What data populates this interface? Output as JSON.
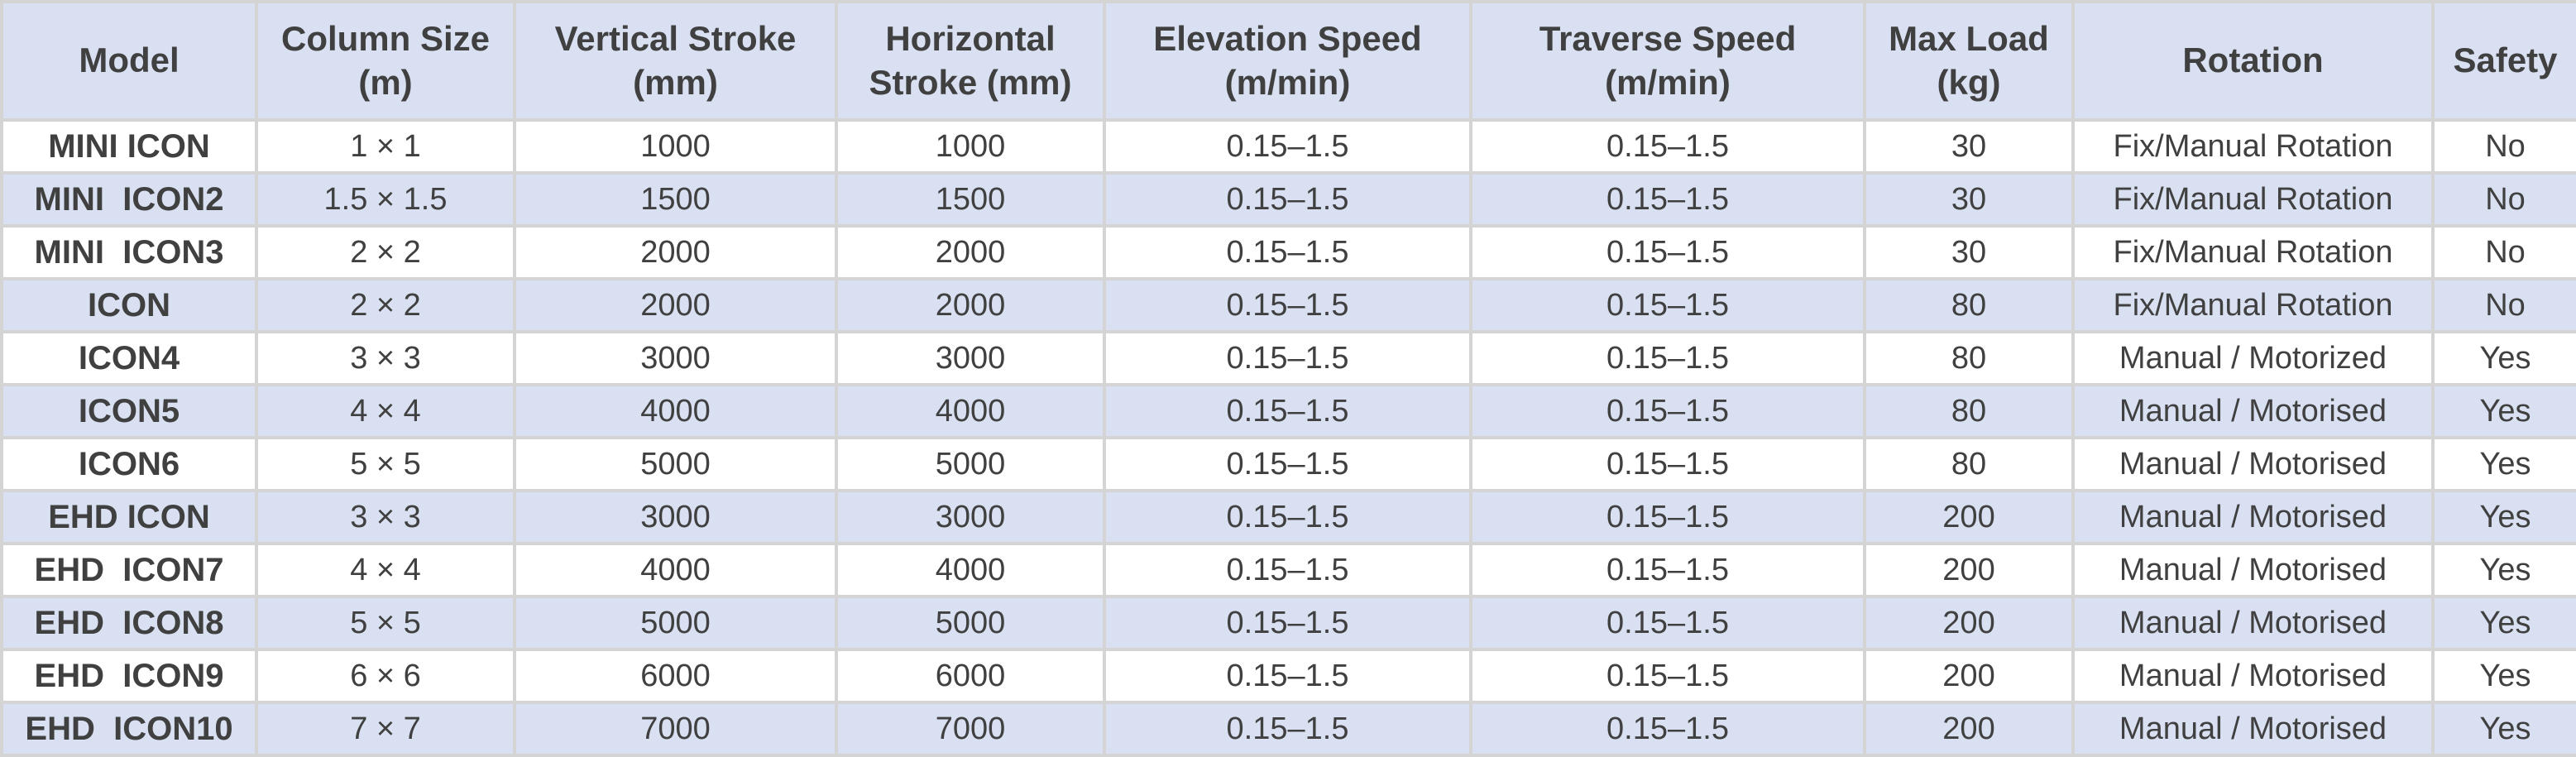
{
  "table": {
    "headers": [
      "Model",
      "Column Size (m)",
      "Vertical Stroke (mm)",
      "Horizontal Stroke (mm)",
      "Elevation Speed (m/min)",
      "Traverse Speed (m/min)",
      "Max Load (kg)",
      "Rotation",
      "Safety"
    ],
    "rows": [
      [
        "MINI ICON",
        "1 × 1",
        "1000",
        "1000",
        "0.15–1.5",
        "0.15–1.5",
        "30",
        "Fix/Manual Rotation",
        "No"
      ],
      [
        "MINI  ICON2",
        "1.5 × 1.5",
        "1500",
        "1500",
        "0.15–1.5",
        "0.15–1.5",
        "30",
        "Fix/Manual Rotation",
        "No"
      ],
      [
        "MINI  ICON3",
        "2 × 2",
        "2000",
        "2000",
        "0.15–1.5",
        "0.15–1.5",
        "30",
        "Fix/Manual Rotation",
        "No"
      ],
      [
        "ICON",
        "2 × 2",
        "2000",
        "2000",
        "0.15–1.5",
        "0.15–1.5",
        "80",
        "Fix/Manual Rotation",
        "No"
      ],
      [
        "ICON4",
        "3 × 3",
        "3000",
        "3000",
        "0.15–1.5",
        "0.15–1.5",
        "80",
        "Manual / Motorized",
        "Yes"
      ],
      [
        "ICON5",
        "4 × 4",
        "4000",
        "4000",
        "0.15–1.5",
        "0.15–1.5",
        "80",
        "Manual / Motorised",
        "Yes"
      ],
      [
        "ICON6",
        "5 × 5",
        "5000",
        "5000",
        "0.15–1.5",
        "0.15–1.5",
        "80",
        "Manual / Motorised",
        "Yes"
      ],
      [
        "EHD ICON",
        "3 × 3",
        "3000",
        "3000",
        "0.15–1.5",
        "0.15–1.5",
        "200",
        "Manual / Motorised",
        "Yes"
      ],
      [
        "EHD  ICON7",
        "4 × 4",
        "4000",
        "4000",
        "0.15–1.5",
        "0.15–1.5",
        "200",
        "Manual / Motorised",
        "Yes"
      ],
      [
        "EHD  ICON8",
        "5 × 5",
        "5000",
        "5000",
        "0.15–1.5",
        "0.15–1.5",
        "200",
        "Manual / Motorised",
        "Yes"
      ],
      [
        "EHD  ICON9",
        "6 × 6",
        "6000",
        "6000",
        "0.15–1.5",
        "0.15–1.5",
        "200",
        "Manual / Motorised",
        "Yes"
      ],
      [
        "EHD  ICON10",
        "7 × 7",
        "7000",
        "7000",
        "0.15–1.5",
        "0.15–1.5",
        "200",
        "Manual / Motorised",
        "Yes"
      ]
    ]
  }
}
